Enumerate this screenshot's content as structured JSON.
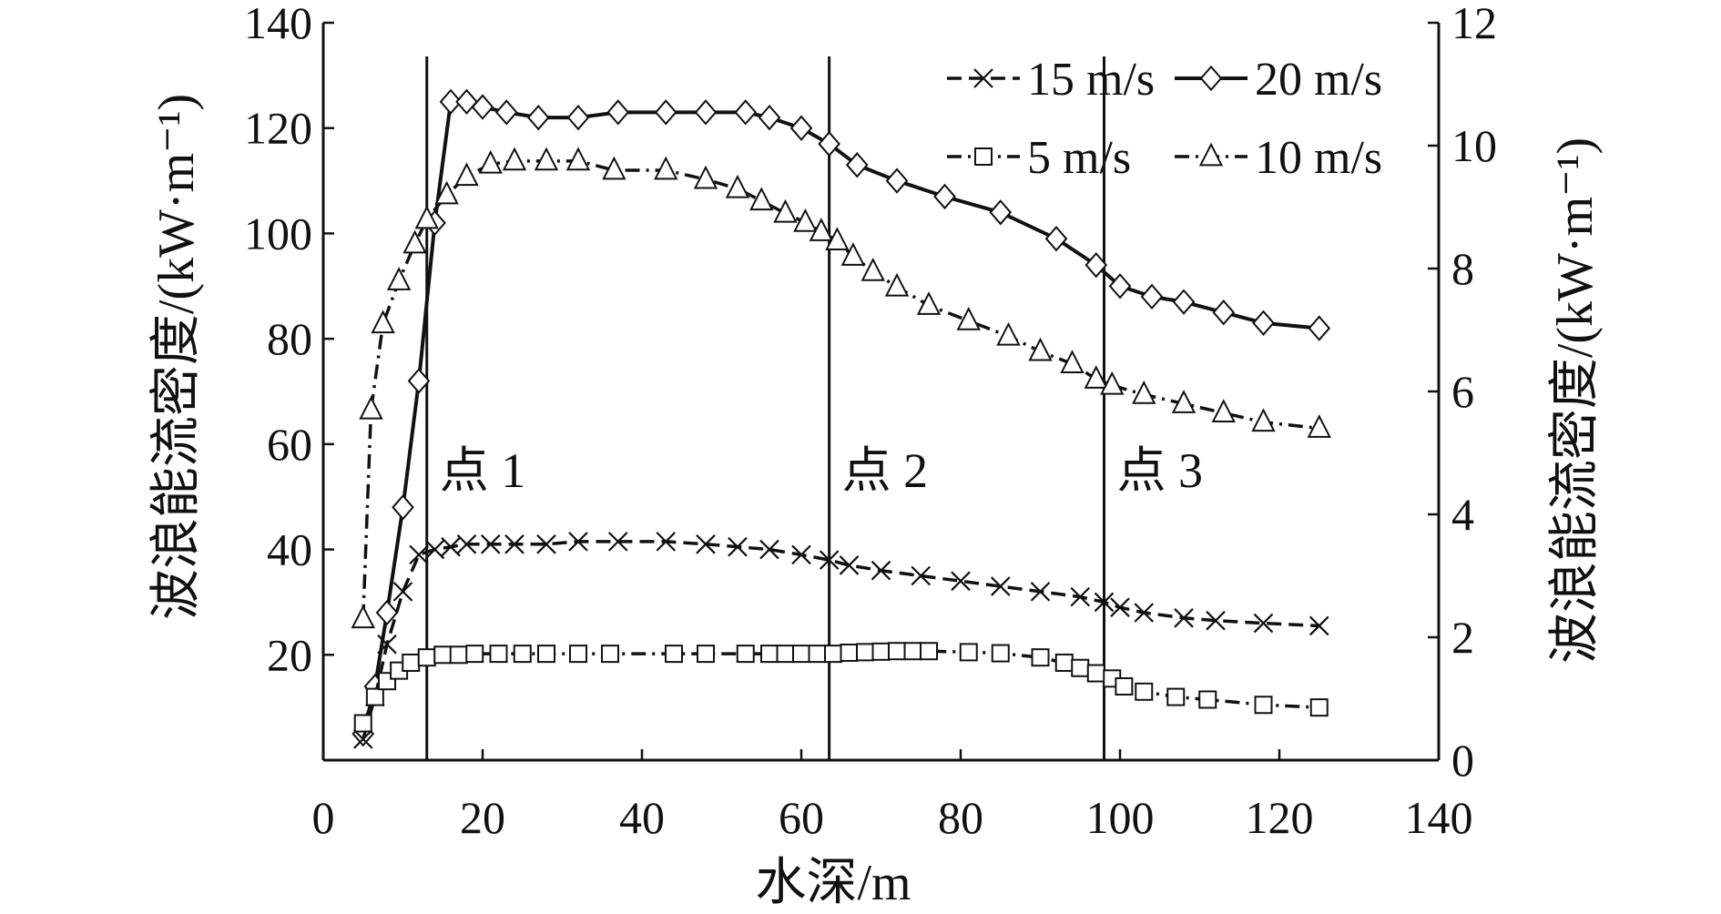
{
  "chart_data": {
    "type": "line",
    "xlabel": "水深/m",
    "ylabel_left": "波浪能流密度/(kW·m⁻¹)",
    "ylabel_right": "波浪能流密度/(kW·m⁻¹)",
    "xlim": [
      0,
      140
    ],
    "ylim_left": [
      0,
      140
    ],
    "ylim_right": [
      0,
      12
    ],
    "xticks": [
      "0",
      "20",
      "40",
      "60",
      "80",
      "100",
      "120",
      "140"
    ],
    "yticks_left": [
      "20",
      "40",
      "60",
      "80",
      "100",
      "120",
      "140"
    ],
    "yticks_right": [
      "0",
      "2",
      "4",
      "6",
      "8",
      "10",
      "12"
    ],
    "grid": false,
    "legend_position": "top-right",
    "legend": [
      {
        "label": "15 m/s",
        "series": "15 m/s"
      },
      {
        "label": "20 m/s",
        "series": "20 m/s"
      },
      {
        "label": "5 m/s",
        "series": "5 m/s"
      },
      {
        "label": "10 m/s",
        "series": "10 m/s"
      }
    ],
    "vlines": [
      {
        "x": 13,
        "label": "点 1"
      },
      {
        "x": 63.5,
        "label": "点 2"
      },
      {
        "x": 98,
        "label": "点 3"
      }
    ],
    "series": [
      {
        "name": "20 m/s",
        "axis": "left",
        "marker": "diamond",
        "line": "solid",
        "x": [
          5,
          6.5,
          8,
          10,
          12,
          14,
          16,
          18,
          20,
          23,
          27,
          32,
          37,
          43,
          48,
          53,
          56,
          60,
          63.5,
          67,
          72,
          78,
          85,
          92,
          97,
          100,
          104,
          108,
          113,
          118,
          125
        ],
        "y": [
          5,
          14,
          28,
          48,
          72,
          102,
          125,
          125,
          124,
          123,
          122,
          122,
          123,
          123,
          123,
          123,
          122,
          120,
          117,
          113,
          110,
          107,
          104,
          99,
          94,
          90,
          88,
          87,
          85,
          83,
          82
        ]
      },
      {
        "name": "10 m/s",
        "axis": "right",
        "marker": "triangle",
        "line": "dashdot",
        "x": [
          5,
          6,
          7.5,
          9.5,
          11.5,
          13,
          15.5,
          18,
          21,
          24,
          28,
          32,
          36.5,
          43,
          48,
          52,
          55,
          58,
          60.5,
          62.5,
          64.5,
          66.5,
          69,
          72,
          76,
          81,
          86,
          90,
          94,
          97,
          99,
          103,
          108,
          113,
          118,
          125
        ],
        "y": [
          2.3,
          5.7,
          7.1,
          7.8,
          8.4,
          8.8,
          9.2,
          9.5,
          9.7,
          9.75,
          9.75,
          9.75,
          9.6,
          9.6,
          9.45,
          9.3,
          9.1,
          8.9,
          8.75,
          8.6,
          8.45,
          8.2,
          7.95,
          7.7,
          7.4,
          7.15,
          6.9,
          6.65,
          6.45,
          6.2,
          6.1,
          5.95,
          5.8,
          5.65,
          5.5,
          5.4
        ]
      },
      {
        "name": "15 m/s",
        "axis": "left",
        "marker": "x",
        "line": "dashed",
        "x": [
          5,
          6.5,
          8,
          10,
          12,
          14,
          16,
          18,
          21,
          24,
          28,
          32,
          37,
          43,
          48,
          52,
          56,
          60,
          63.5,
          66,
          70,
          75,
          80,
          85,
          90,
          95,
          98,
          100,
          103,
          108,
          112,
          118,
          125
        ],
        "y": [
          4,
          12,
          22,
          32,
          39,
          40,
          40.5,
          41,
          41,
          41,
          41,
          41.5,
          41.5,
          41.5,
          41,
          40.5,
          40,
          39,
          38,
          37,
          36,
          35,
          34,
          33,
          32,
          31,
          30,
          29,
          28,
          27,
          26.5,
          26,
          25.5
        ]
      },
      {
        "name": "5 m/s",
        "axis": "left",
        "marker": "square",
        "line": "dashdot",
        "x": [
          5,
          6.5,
          8,
          9.5,
          11,
          13,
          15,
          17,
          19,
          22,
          25,
          28,
          32,
          36,
          44,
          48,
          53,
          56,
          58,
          60,
          62,
          64,
          66,
          68,
          70,
          72,
          74,
          76,
          81,
          85,
          90,
          93,
          95,
          97,
          99,
          100.5,
          103,
          107,
          111,
          118,
          125
        ],
        "y": [
          7,
          12,
          15,
          17,
          18.5,
          19.5,
          20,
          20,
          20.2,
          20.2,
          20.2,
          20.2,
          20.2,
          20.2,
          20.2,
          20.2,
          20.2,
          20.2,
          20.2,
          20.2,
          20.2,
          20.2,
          20.4,
          20.5,
          20.6,
          20.7,
          20.7,
          20.7,
          20.5,
          20.3,
          19.5,
          18.5,
          17.5,
          16.5,
          15.5,
          14,
          13,
          12,
          11.5,
          10.5,
          10
        ]
      }
    ]
  }
}
